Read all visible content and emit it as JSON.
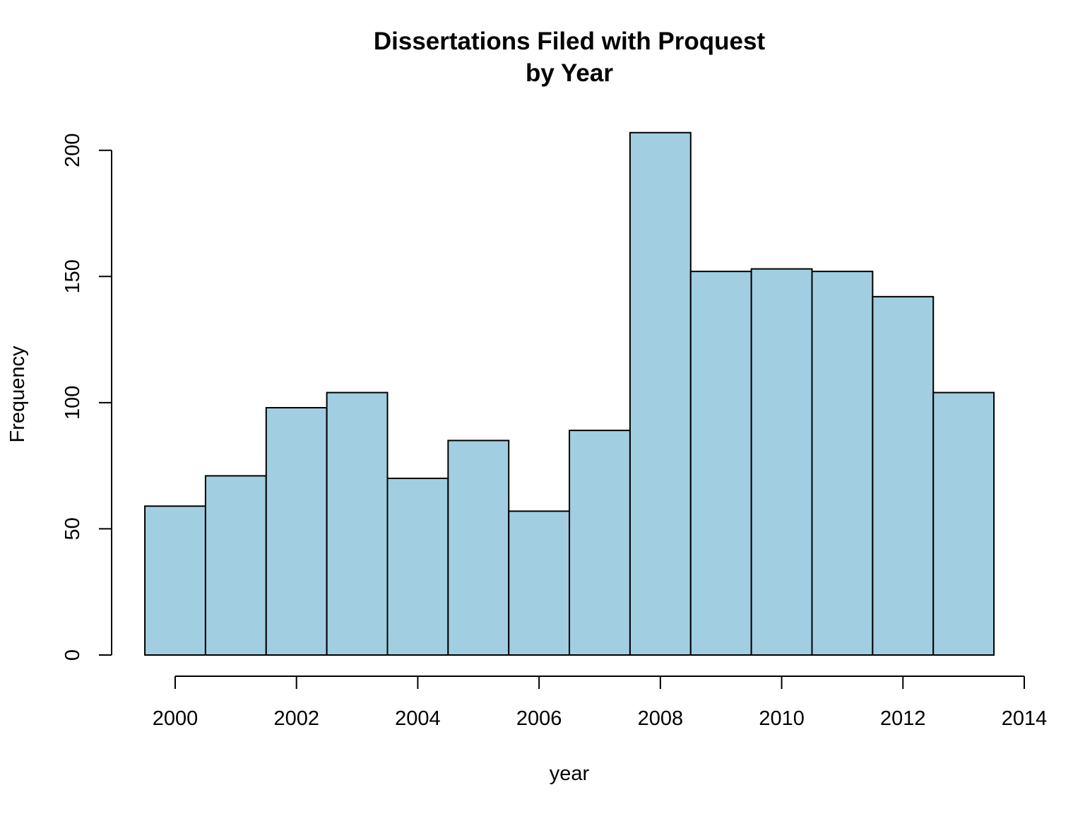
{
  "chart_data": {
    "type": "bar",
    "title": "Dissertations Filed with Proquest",
    "subtitle": "by Year",
    "xlabel": "year",
    "ylabel": "Frequency",
    "bar_color": "#a1cfe1",
    "grid": false,
    "xlim": [
      2000,
      2014
    ],
    "ylim": [
      0,
      207
    ],
    "x_ticks": [
      2000,
      2002,
      2004,
      2006,
      2008,
      2010,
      2012,
      2014
    ],
    "y_ticks": [
      0,
      50,
      100,
      150,
      200
    ],
    "categories": [
      2000,
      2001,
      2002,
      2003,
      2004,
      2005,
      2006,
      2007,
      2008,
      2009,
      2010,
      2011,
      2012,
      2013
    ],
    "values": [
      59,
      71,
      98,
      104,
      70,
      85,
      57,
      89,
      207,
      152,
      153,
      152,
      142,
      104
    ]
  }
}
